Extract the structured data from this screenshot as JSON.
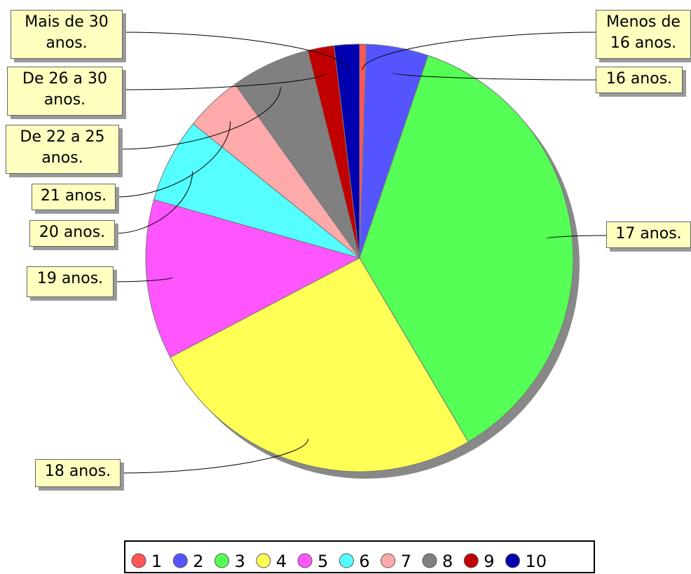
{
  "chart_data": {
    "type": "pie",
    "categories": [
      "Menos de 16 anos.",
      "16 anos.",
      "17 anos.",
      "18 anos.",
      "19 anos.",
      "20 anos.",
      "21 anos.",
      "De 22 a 25 anos.",
      "De 26 a 30 anos.",
      "Mais de 30 anos."
    ],
    "values": [
      0.5,
      4.7,
      36.3,
      25.8,
      12.1,
      6.4,
      4.3,
      6.0,
      2.0,
      1.9
    ],
    "colors": [
      "#ff5555",
      "#5555ff",
      "#55ff55",
      "#ffff55",
      "#ff55ff",
      "#55ffff",
      "#ffaaaa",
      "#808080",
      "#c00000",
      "#0000b0"
    ],
    "legend": [
      "1",
      "2",
      "3",
      "4",
      "5",
      "6",
      "7",
      "8",
      "9",
      "10"
    ]
  }
}
